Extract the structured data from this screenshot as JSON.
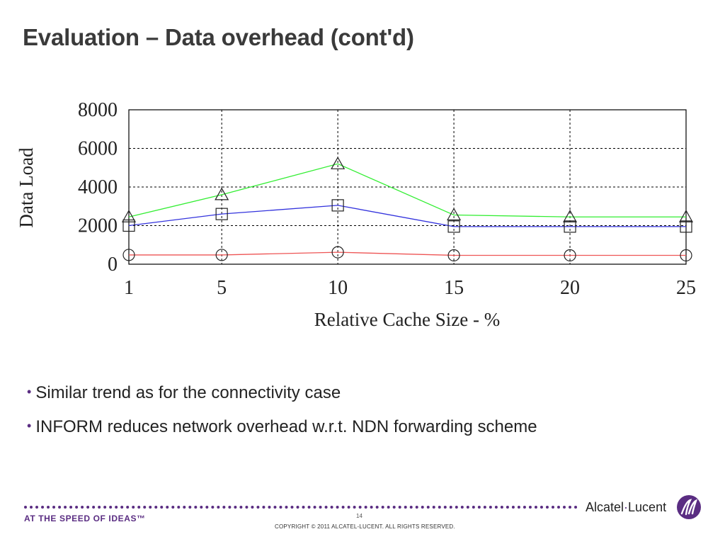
{
  "slide": {
    "title": "Evaluation – Data overhead (cont'd)",
    "bullets": [
      "Similar trend as for the connectivity case",
      "INFORM reduces network overhead w.r.t. NDN forwarding scheme"
    ]
  },
  "footer": {
    "tagline": "AT THE SPEED OF IDEAS™",
    "page_number": "14",
    "copyright": "COPYRIGHT © 2011 ALCATEL-LUCENT.  ALL RIGHTS RESERVED.",
    "brand_left": "Alcatel",
    "brand_sep": "·",
    "brand_right": "Lucent",
    "brand_color": "#5a2d82"
  },
  "chart_data": {
    "type": "line",
    "title": "",
    "xlabel": "Relative Cache Size - %",
    "ylabel": "Data Load",
    "x": [
      1,
      5,
      10,
      15,
      20,
      25
    ],
    "xticks": [
      "1",
      "5",
      "10",
      "15",
      "20",
      "25"
    ],
    "yticks": [
      "0",
      "2000",
      "4000",
      "6000",
      "8000"
    ],
    "ylim": [
      0,
      8000
    ],
    "grid": true,
    "legend": "none",
    "series": [
      {
        "values": [
          2450,
          3600,
          5200,
          2550,
          2450,
          2450
        ],
        "color": "#33ee33",
        "marker": "triangle"
      },
      {
        "values": [
          2000,
          2600,
          3050,
          1950,
          1950,
          1950
        ],
        "color": "#3333dd",
        "marker": "square"
      },
      {
        "values": [
          480,
          480,
          620,
          460,
          460,
          460
        ],
        "color": "#ee5555",
        "marker": "circle"
      }
    ]
  }
}
